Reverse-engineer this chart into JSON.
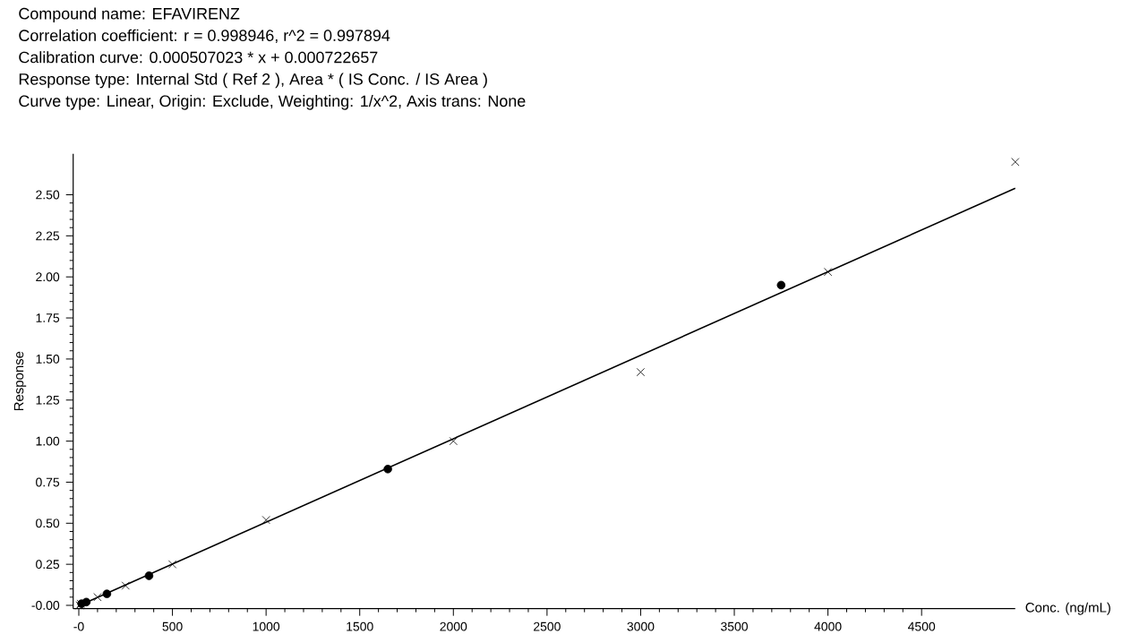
{
  "chart_data": {
    "type": "scatter",
    "title": "Compound name: EFAVIRENZ",
    "annotations": [
      "Correlation coefficient: r = 0.998946, r^2 = 0.997894",
      "Calibration curve: 0.000507023 * x + 0.000722657",
      "Response type: Internal Std ( Ref 2 ), Area * ( IS Conc. / IS Area )",
      "Curve type: Linear, Origin: Exclude, Weighting: 1/x^2, Axis trans: None"
    ],
    "xlabel": "Conc. (ng/mL)",
    "ylabel": "Response",
    "xlim": [
      -30,
      5000
    ],
    "ylim": [
      -0.02,
      2.75
    ],
    "xticks": [
      {
        "value": 0,
        "label": "-0"
      },
      500,
      1000,
      1500,
      2000,
      2500,
      3000,
      3500,
      4000,
      4500
    ],
    "yticks": [
      {
        "value": 0,
        "label": "-0.00"
      },
      {
        "value": 0.25,
        "label": "0.25"
      },
      {
        "value": 0.5,
        "label": "0.50"
      },
      {
        "value": 0.75,
        "label": "0.75"
      },
      {
        "value": 1.0,
        "label": "1.00"
      },
      {
        "value": 1.25,
        "label": "1.25"
      },
      {
        "value": 1.5,
        "label": "1.50"
      },
      {
        "value": 1.75,
        "label": "1.75"
      },
      {
        "value": 2.0,
        "label": "2.00"
      },
      {
        "value": 2.25,
        "label": "2.25"
      },
      {
        "value": 2.5,
        "label": "2.50"
      }
    ],
    "series": [
      {
        "type": "line",
        "color": "#000000",
        "marker": "none",
        "x": [
          5,
          5000
        ],
        "values": [
          0.0,
          2.54
        ]
      },
      {
        "color": "#000000",
        "marker": "cross",
        "x": [
          5,
          10,
          25,
          50,
          100,
          250,
          500,
          1000,
          2000,
          3000,
          4000,
          5000
        ],
        "values": [
          0.0,
          0.01,
          null,
          null,
          0.05,
          0.12,
          0.25,
          0.52,
          1.0,
          1.42,
          2.03,
          2.7
        ]
      },
      {
        "color": "#000000",
        "marker": "circle",
        "x": [
          15,
          40,
          150,
          375,
          1650,
          3750
        ],
        "values": [
          0.01,
          0.02,
          0.07,
          0.18,
          0.83,
          1.95
        ]
      }
    ]
  }
}
